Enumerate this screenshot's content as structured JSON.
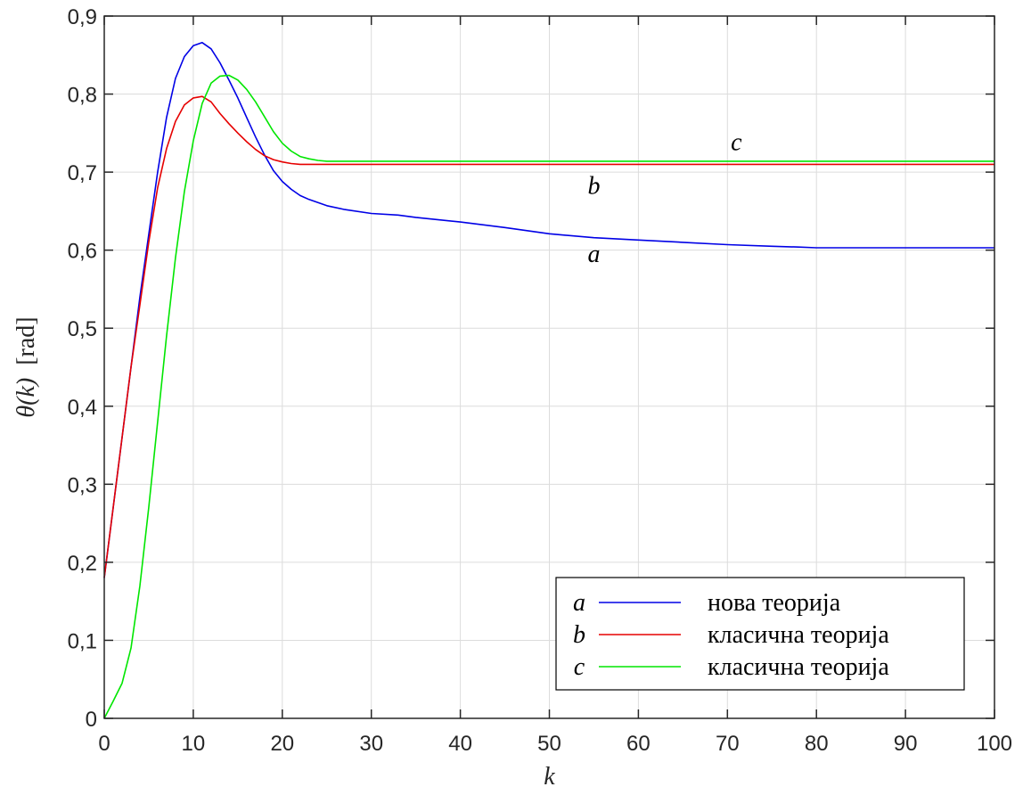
{
  "chart_data": {
    "type": "line",
    "xlabel": "k",
    "ylabel_symbol": "θ(k)",
    "ylabel_unit": "[rad]",
    "xlim": [
      0,
      100
    ],
    "ylim": [
      0,
      0.9
    ],
    "xticks": [
      0,
      10,
      20,
      30,
      40,
      50,
      60,
      70,
      80,
      90,
      100
    ],
    "yticks": [
      0,
      0.1,
      0.2,
      0.3,
      0.4,
      0.5,
      0.6,
      0.7,
      0.8,
      0.9
    ],
    "ytick_labels": [
      "0",
      "0,1",
      "0,2",
      "0,3",
      "0,4",
      "0,5",
      "0,6",
      "0,7",
      "0,8",
      "0,9"
    ],
    "grid": true,
    "legend_position": "bottom-right",
    "series": [
      {
        "key": "a",
        "name": "нова теорија",
        "color": "#0000e6",
        "x": [
          0,
          1,
          2,
          3,
          4,
          5,
          6,
          7,
          8,
          9,
          10,
          11,
          12,
          13,
          14,
          15,
          16,
          17,
          18,
          19,
          20,
          21,
          22,
          23,
          25,
          27,
          30,
          33,
          35,
          40,
          45,
          50,
          55,
          60,
          65,
          70,
          75,
          78,
          80,
          85,
          90,
          95,
          100
        ],
        "y": [
          0.18,
          0.27,
          0.36,
          0.45,
          0.54,
          0.62,
          0.7,
          0.77,
          0.82,
          0.848,
          0.862,
          0.866,
          0.858,
          0.84,
          0.818,
          0.795,
          0.77,
          0.745,
          0.722,
          0.702,
          0.688,
          0.678,
          0.67,
          0.665,
          0.657,
          0.652,
          0.647,
          0.645,
          0.642,
          0.636,
          0.629,
          0.621,
          0.616,
          0.613,
          0.61,
          0.607,
          0.605,
          0.604,
          0.603,
          0.603,
          0.603,
          0.603,
          0.603
        ],
        "label_at": [
          55,
          0.585
        ]
      },
      {
        "key": "b",
        "name": "класична теорија",
        "color": "#e60000",
        "x": [
          0,
          1,
          2,
          3,
          4,
          5,
          6,
          7,
          8,
          9,
          10,
          11,
          12,
          13,
          14,
          15,
          16,
          17,
          18,
          19,
          20,
          21,
          22,
          25,
          30,
          40,
          50,
          60,
          70,
          80,
          90,
          100
        ],
        "y": [
          0.18,
          0.27,
          0.36,
          0.45,
          0.53,
          0.61,
          0.68,
          0.73,
          0.765,
          0.786,
          0.795,
          0.797,
          0.79,
          0.775,
          0.762,
          0.75,
          0.739,
          0.729,
          0.721,
          0.716,
          0.713,
          0.711,
          0.71,
          0.71,
          0.71,
          0.71,
          0.71,
          0.71,
          0.71,
          0.71,
          0.71,
          0.71
        ],
        "label_at": [
          55,
          0.672
        ]
      },
      {
        "key": "c",
        "name": "класична теорија",
        "color": "#00e600",
        "x": [
          0,
          1,
          2,
          3,
          4,
          5,
          6,
          7,
          8,
          9,
          10,
          11,
          12,
          13,
          14,
          15,
          16,
          17,
          18,
          19,
          20,
          21,
          22,
          23,
          24,
          25,
          30,
          40,
          50,
          60,
          70,
          80,
          90,
          100
        ],
        "y": [
          0.0,
          0.022,
          0.045,
          0.09,
          0.17,
          0.27,
          0.38,
          0.49,
          0.59,
          0.675,
          0.74,
          0.788,
          0.814,
          0.823,
          0.824,
          0.818,
          0.806,
          0.79,
          0.771,
          0.752,
          0.737,
          0.727,
          0.72,
          0.717,
          0.715,
          0.714,
          0.714,
          0.714,
          0.714,
          0.714,
          0.714,
          0.714,
          0.714,
          0.714
        ],
        "label_at": [
          71,
          0.728
        ]
      }
    ]
  }
}
